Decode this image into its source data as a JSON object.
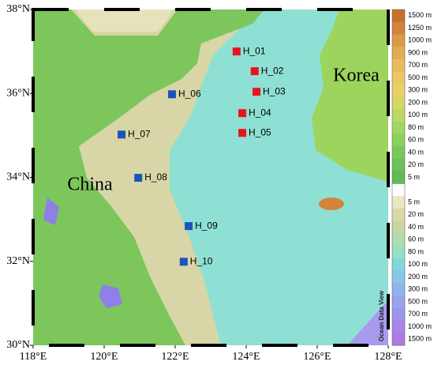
{
  "map": {
    "xlim": [
      118,
      128
    ],
    "ylim": [
      30,
      38
    ],
    "xticks": [
      {
        "value": 118,
        "label": "118°E"
      },
      {
        "value": 120,
        "label": "120°E"
      },
      {
        "value": 122,
        "label": "122°E"
      },
      {
        "value": 124,
        "label": "124°E"
      },
      {
        "value": 126,
        "label": "126°E"
      },
      {
        "value": 128,
        "label": "128°E"
      }
    ],
    "yticks": [
      {
        "value": 30,
        "label": "30°N"
      },
      {
        "value": 32,
        "label": "32°N"
      },
      {
        "value": 34,
        "label": "34°N"
      },
      {
        "value": 36,
        "label": "36°N"
      },
      {
        "value": 38,
        "label": "38°N"
      }
    ],
    "regions": [
      {
        "label": "China",
        "lon": 119.6,
        "lat": 33.8
      },
      {
        "label": "Korea",
        "lon": 127.1,
        "lat": 36.4
      }
    ],
    "stations": [
      {
        "name": "H_01",
        "lon": 123.73,
        "lat": 37.0,
        "color": "#e8141c"
      },
      {
        "name": "H_02",
        "lon": 124.24,
        "lat": 36.53,
        "color": "#e8141c"
      },
      {
        "name": "H_03",
        "lon": 124.29,
        "lat": 36.04,
        "color": "#e8141c"
      },
      {
        "name": "H_04",
        "lon": 123.89,
        "lat": 35.53,
        "color": "#e8141c"
      },
      {
        "name": "H_05",
        "lon": 123.89,
        "lat": 35.06,
        "color": "#e8141c"
      },
      {
        "name": "H_06",
        "lon": 121.91,
        "lat": 35.98,
        "color": "#1b55b8"
      },
      {
        "name": "H_07",
        "lon": 120.49,
        "lat": 35.02,
        "color": "#1b55b8"
      },
      {
        "name": "H_08",
        "lon": 120.96,
        "lat": 33.99,
        "color": "#1b55b8"
      },
      {
        "name": "H_09",
        "lon": 122.38,
        "lat": 32.84,
        "color": "#1b55b8"
      },
      {
        "name": "H_10",
        "lon": 122.24,
        "lat": 31.99,
        "color": "#1b55b8"
      }
    ],
    "land_scale": [
      {
        "label": "1500 m",
        "color": "#c8702e"
      },
      {
        "label": "1250 m",
        "color": "#d2843a"
      },
      {
        "label": "1000 m",
        "color": "#dc9a48"
      },
      {
        "label": "900 m",
        "color": "#e2ab55"
      },
      {
        "label": "700 m",
        "color": "#e8bb5f"
      },
      {
        "label": "500 m",
        "color": "#ecc865"
      },
      {
        "label": "300 m",
        "color": "#e6d267"
      },
      {
        "label": "200 m",
        "color": "#d6d766"
      },
      {
        "label": "100 m",
        "color": "#bcd865"
      },
      {
        "label": "80 m",
        "color": "#a2d662"
      },
      {
        "label": "60 m",
        "color": "#8ad05e"
      },
      {
        "label": "40 m",
        "color": "#78c85a"
      },
      {
        "label": "20 m",
        "color": "#6cc158"
      },
      {
        "label": "5 m",
        "color": "#62b958"
      }
    ],
    "ocean_scale": [
      {
        "label": "5 m",
        "color": "#ece6c0"
      },
      {
        "label": "20 m",
        "color": "#dcd8a8"
      },
      {
        "label": "40 m",
        "color": "#c8d6a4"
      },
      {
        "label": "60 m",
        "color": "#b0dcb0"
      },
      {
        "label": "80 m",
        "color": "#94e0c4"
      },
      {
        "label": "100 m",
        "color": "#80d8d8"
      },
      {
        "label": "200 m",
        "color": "#86c8e6"
      },
      {
        "label": "300 m",
        "color": "#8eb6ec"
      },
      {
        "label": "500 m",
        "color": "#98a4ee"
      },
      {
        "label": "700 m",
        "color": "#a094ec"
      },
      {
        "label": "1000 m",
        "color": "#a886e8"
      },
      {
        "label": "1500 m",
        "color": "#b07ae2"
      }
    ],
    "credit": "Ocean Data View"
  }
}
